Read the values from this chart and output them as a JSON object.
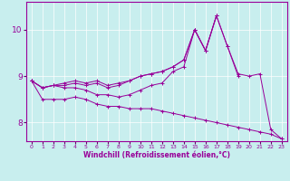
{
  "background_color": "#c8eeee",
  "line_color": "#990099",
  "xlabel": "Windchill (Refroidissement éolien,°C)",
  "xlim": [
    -0.5,
    23.5
  ],
  "ylim": [
    7.6,
    10.6
  ],
  "yticks": [
    8,
    9,
    10
  ],
  "xticks": [
    0,
    1,
    2,
    3,
    4,
    5,
    6,
    7,
    8,
    9,
    10,
    11,
    12,
    13,
    14,
    15,
    16,
    17,
    18,
    19,
    20,
    21,
    22,
    23
  ],
  "series": [
    [
      8.9,
      8.75,
      8.8,
      8.8,
      8.85,
      8.8,
      8.85,
      8.75,
      8.8,
      8.9,
      9.0,
      9.05,
      9.1,
      9.2,
      9.35,
      10.0,
      9.55,
      10.3,
      9.65,
      9.0,
      null,
      null,
      null,
      null
    ],
    [
      8.9,
      8.75,
      8.8,
      8.75,
      8.75,
      8.7,
      8.6,
      8.6,
      8.55,
      8.6,
      8.7,
      8.8,
      8.85,
      9.1,
      9.2,
      10.0,
      9.55,
      10.3,
      null,
      null,
      null,
      null,
      null,
      null
    ],
    [
      8.9,
      8.75,
      8.8,
      8.85,
      8.9,
      8.85,
      8.9,
      8.8,
      8.85,
      8.9,
      9.0,
      9.05,
      9.1,
      9.2,
      9.35,
      10.0,
      9.55,
      10.3,
      9.65,
      9.05,
      9.0,
      9.05,
      7.85,
      7.65
    ],
    [
      8.9,
      8.5,
      8.5,
      8.5,
      8.55,
      8.5,
      8.4,
      8.35,
      8.35,
      8.3,
      8.3,
      8.3,
      8.25,
      8.2,
      8.15,
      8.1,
      8.05,
      8.0,
      7.95,
      7.9,
      7.85,
      7.8,
      7.75,
      7.65
    ]
  ]
}
